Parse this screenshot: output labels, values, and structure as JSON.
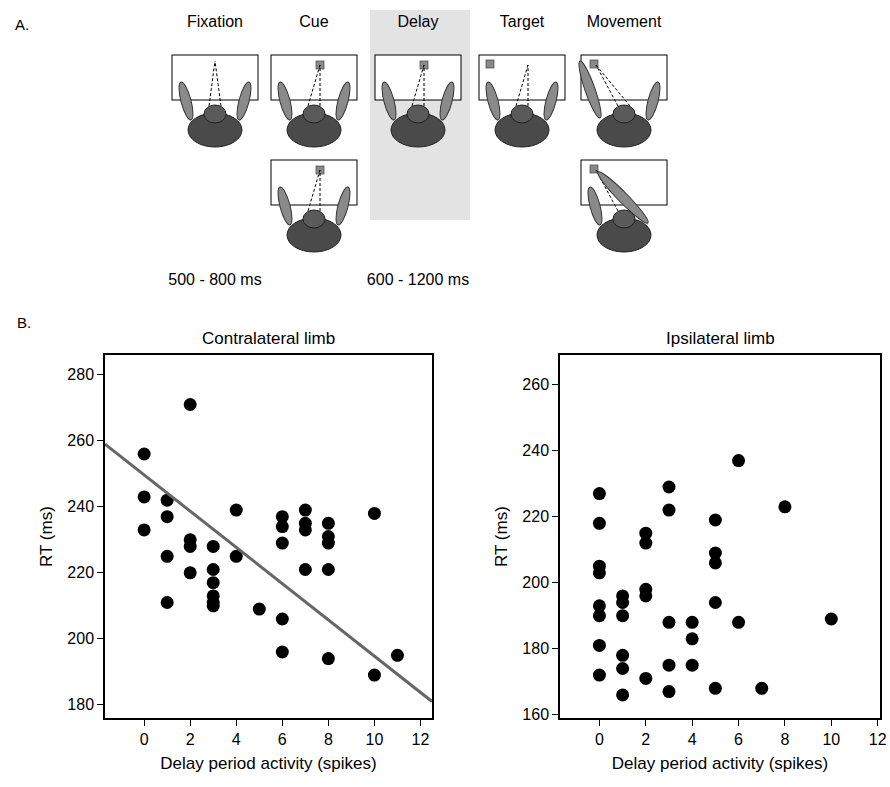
{
  "diagram": {
    "label": "A.",
    "stages": [
      "Fixation",
      "Cue",
      "Delay",
      "Target",
      "Movement"
    ],
    "durations": [
      "500 - 800 ms",
      null,
      "600 - 1200 ms",
      null,
      null
    ]
  },
  "panel_label": "B.",
  "chart_data": [
    {
      "type": "scatter",
      "title": "Contralateral limb",
      "x_label": "Delay period activity (spikes)",
      "y_label": "RT (ms)",
      "xlim": [
        -1.7,
        12.5
      ],
      "ylim": [
        176,
        286
      ],
      "xticks": [
        0,
        2,
        4,
        6,
        8,
        10,
        12
      ],
      "yticks": [
        180,
        200,
        220,
        240,
        260,
        280
      ],
      "grid": false,
      "series": [
        {
          "type": "scatter",
          "color": "#000000",
          "marker": "circle",
          "x": [
            0,
            0,
            0,
            1,
            1,
            1,
            1,
            2,
            2,
            2,
            2,
            3,
            3,
            3,
            3,
            3,
            3,
            4,
            4,
            5,
            6,
            6,
            6,
            6,
            6,
            7,
            7,
            7,
            7,
            8,
            8,
            8,
            8,
            8,
            10,
            10,
            11
          ],
          "values": [
            256,
            243,
            233,
            242,
            237,
            225,
            211,
            271,
            230,
            228,
            220,
            228,
            221,
            217,
            213,
            211,
            210,
            239,
            225,
            209,
            237,
            234,
            229,
            206,
            196,
            239,
            235,
            233,
            221,
            235,
            231,
            229,
            221,
            194,
            238,
            189,
            195
          ]
        },
        {
          "type": "line",
          "color": "#666666",
          "line_style": "solid",
          "x": [
            -1.7,
            12.5
          ],
          "values": [
            259,
            181
          ]
        }
      ]
    },
    {
      "type": "scatter",
      "title": "Ipsilateral limb",
      "x_label": "Delay period activity (spikes)",
      "y_label": "RT (ms)",
      "xlim": [
        -1.7,
        12.1
      ],
      "ylim": [
        159,
        269
      ],
      "xticks": [
        0,
        2,
        4,
        6,
        8,
        10,
        12
      ],
      "yticks": [
        160,
        180,
        200,
        220,
        240,
        260
      ],
      "grid": false,
      "series": [
        {
          "type": "scatter",
          "color": "#000000",
          "marker": "circle",
          "x": [
            0,
            0,
            0,
            0,
            0,
            0,
            0,
            0,
            1,
            1,
            1,
            1,
            1,
            1,
            2,
            2,
            2,
            2,
            2,
            3,
            3,
            3,
            3,
            3,
            4,
            4,
            4,
            5,
            5,
            5,
            5,
            5,
            6,
            6,
            7,
            8,
            10
          ],
          "values": [
            227,
            218,
            205,
            203,
            193,
            190,
            181,
            172,
            196,
            194,
            190,
            178,
            174,
            166,
            215,
            212,
            198,
            196,
            171,
            229,
            222,
            188,
            175,
            167,
            188,
            183,
            175,
            219,
            209,
            206,
            194,
            168,
            237,
            188,
            168,
            223,
            189
          ]
        }
      ]
    }
  ]
}
